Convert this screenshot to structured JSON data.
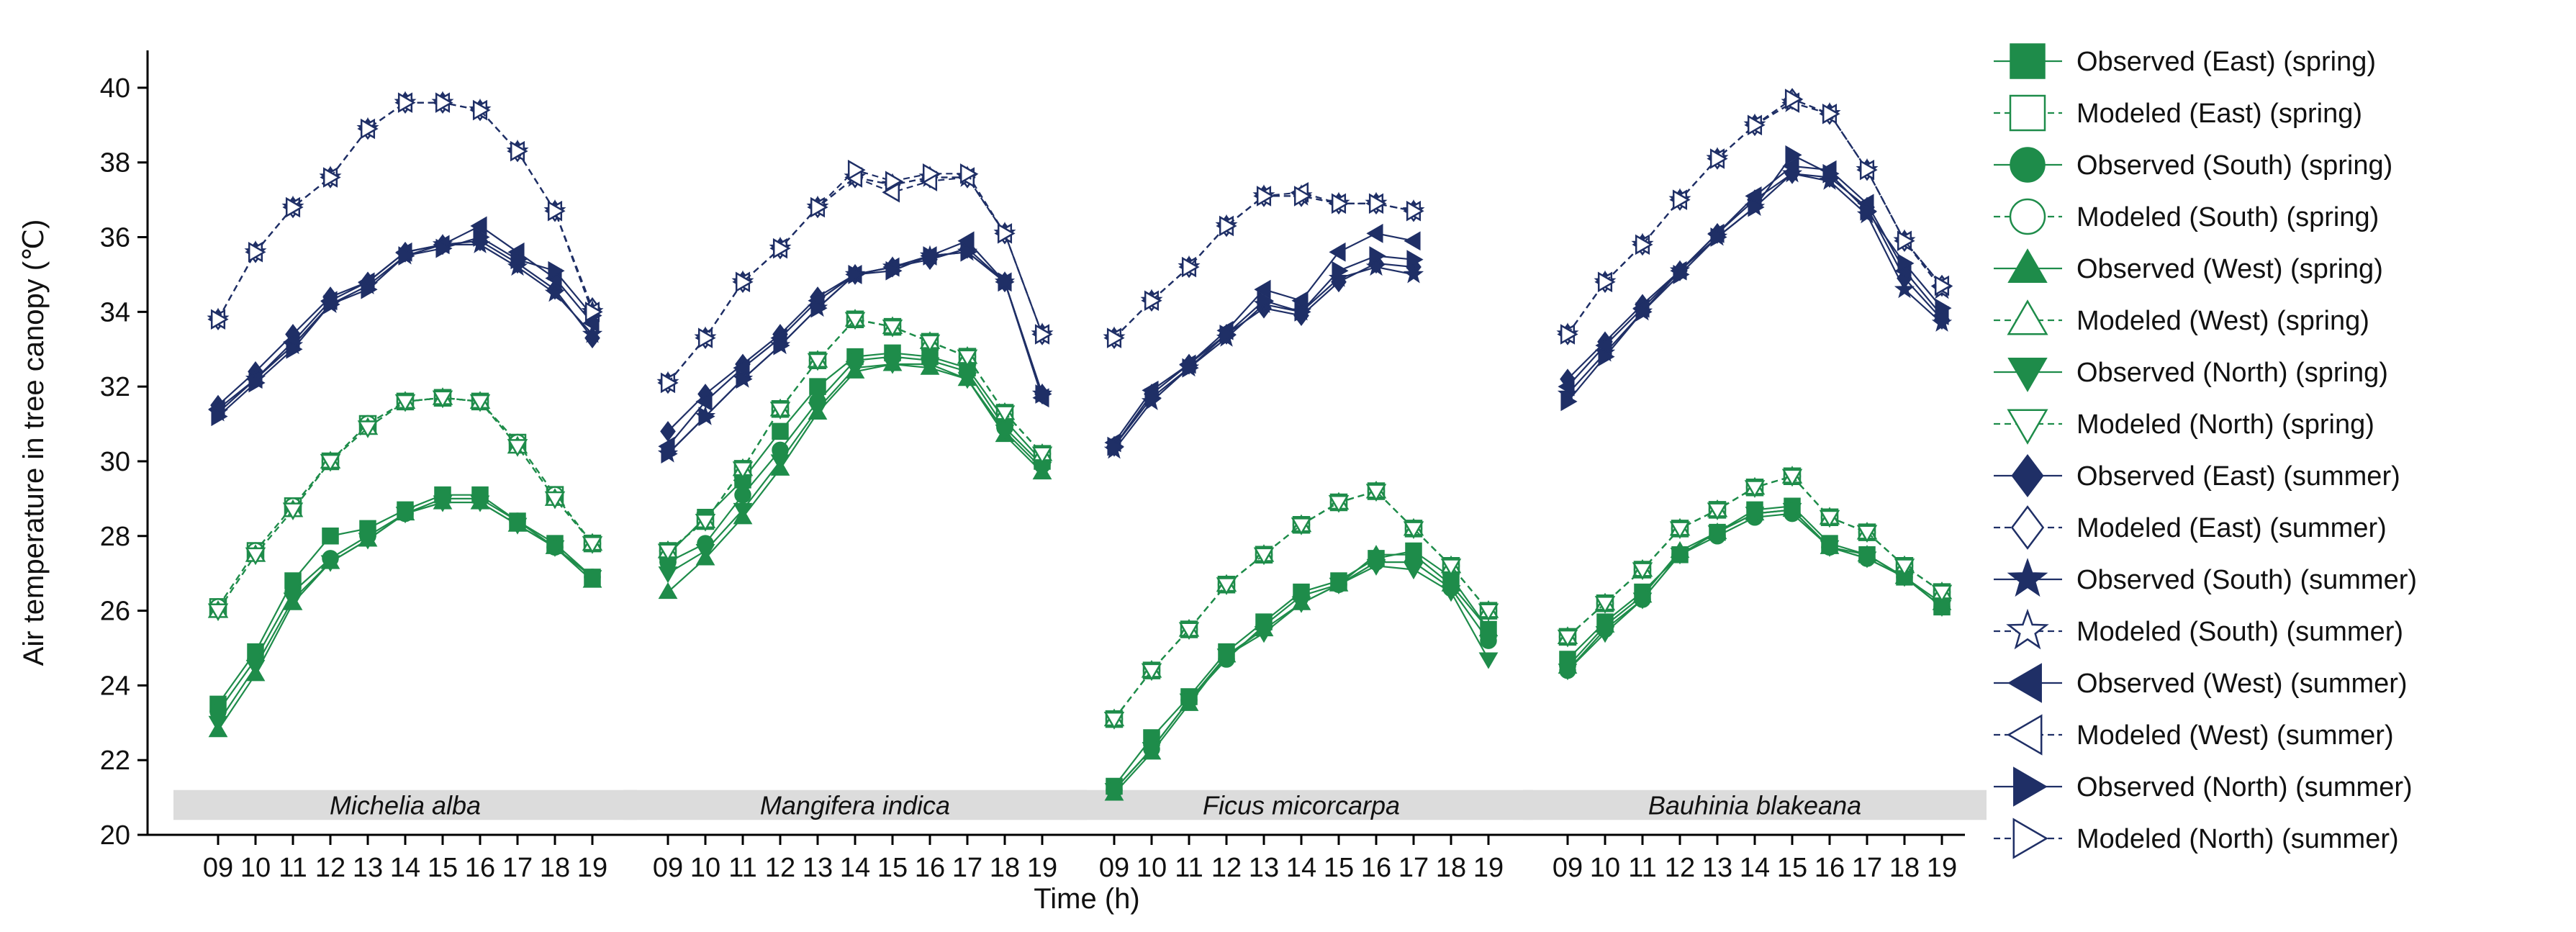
{
  "chart_data": {
    "type": "line",
    "ylabel": "Air temperature in tree canopy (℃)",
    "xlabel": "Time (h)",
    "ylim": [
      20,
      41
    ],
    "yticks": [
      20,
      22,
      24,
      26,
      28,
      30,
      32,
      34,
      36,
      38,
      40
    ],
    "hours": [
      "09",
      "10",
      "11",
      "12",
      "13",
      "14",
      "15",
      "16",
      "17",
      "18",
      "19"
    ],
    "colors": {
      "spring": "#1e8c4a",
      "summer": "#1f2f66"
    },
    "grid": false,
    "legend_position": "right",
    "series_defs": [
      {
        "label": "Observed (East) (spring)",
        "season": "spring",
        "kind": "observed",
        "marker": "square"
      },
      {
        "label": "Modeled (East) (spring)",
        "season": "spring",
        "kind": "modeled",
        "marker": "square"
      },
      {
        "label": "Observed (South) (spring)",
        "season": "spring",
        "kind": "observed",
        "marker": "circle"
      },
      {
        "label": "Modeled (South) (spring)",
        "season": "spring",
        "kind": "modeled",
        "marker": "circle"
      },
      {
        "label": "Observed (West) (spring)",
        "season": "spring",
        "kind": "observed",
        "marker": "triangle-up"
      },
      {
        "label": "Modeled (West) (spring)",
        "season": "spring",
        "kind": "modeled",
        "marker": "triangle-up"
      },
      {
        "label": "Observed (North) (spring)",
        "season": "spring",
        "kind": "observed",
        "marker": "triangle-down"
      },
      {
        "label": "Modeled (North) (spring)",
        "season": "spring",
        "kind": "modeled",
        "marker": "triangle-down"
      },
      {
        "label": "Observed (East) (summer)",
        "season": "summer",
        "kind": "observed",
        "marker": "diamond"
      },
      {
        "label": "Modeled (East) (summer)",
        "season": "summer",
        "kind": "modeled",
        "marker": "diamond"
      },
      {
        "label": "Observed (South) (summer)",
        "season": "summer",
        "kind": "observed",
        "marker": "star"
      },
      {
        "label": "Modeled (South) (summer)",
        "season": "summer",
        "kind": "modeled",
        "marker": "star"
      },
      {
        "label": "Observed (West) (summer)",
        "season": "summer",
        "kind": "observed",
        "marker": "triangle-left"
      },
      {
        "label": "Modeled (West) (summer)",
        "season": "summer",
        "kind": "modeled",
        "marker": "triangle-left"
      },
      {
        "label": "Observed (North) (summer)",
        "season": "summer",
        "kind": "observed",
        "marker": "triangle-right"
      },
      {
        "label": "Modeled (North) (summer)",
        "season": "summer",
        "kind": "modeled",
        "marker": "triangle-right"
      }
    ],
    "panels": [
      {
        "species": "Michelia alba",
        "values": [
          [
            23.5,
            24.9,
            26.8,
            28.0,
            28.2,
            28.7,
            29.1,
            29.1,
            28.4,
            27.8,
            26.9
          ],
          [
            26.1,
            27.6,
            28.8,
            30.0,
            31.0,
            31.6,
            31.7,
            31.6,
            30.5,
            29.1,
            27.8
          ],
          [
            23.3,
            24.7,
            26.5,
            27.4,
            28.0,
            28.6,
            29.0,
            29.0,
            28.4,
            27.7,
            26.9
          ],
          [
            26.1,
            27.6,
            28.8,
            30.0,
            31.0,
            31.6,
            31.7,
            31.6,
            30.5,
            29.1,
            27.8
          ],
          [
            22.8,
            24.3,
            26.2,
            27.3,
            27.9,
            28.6,
            28.9,
            28.9,
            28.3,
            27.7,
            26.8
          ],
          [
            26.0,
            27.5,
            28.7,
            30.0,
            30.9,
            31.6,
            31.7,
            31.6,
            30.4,
            29.0,
            27.8
          ],
          [
            23.0,
            24.5,
            26.3,
            27.3,
            27.9,
            28.6,
            28.9,
            28.9,
            28.3,
            27.7,
            26.9
          ],
          [
            26.0,
            27.5,
            28.7,
            30.0,
            30.9,
            31.6,
            31.7,
            31.6,
            30.4,
            29.0,
            27.8
          ],
          [
            31.5,
            32.4,
            33.4,
            34.4,
            34.8,
            35.6,
            35.8,
            35.9,
            35.3,
            34.6,
            33.3
          ],
          [
            33.8,
            35.6,
            36.8,
            37.6,
            38.9,
            39.6,
            39.6,
            39.4,
            38.3,
            36.7,
            34.1
          ],
          [
            31.3,
            32.2,
            33.1,
            34.2,
            34.7,
            35.5,
            35.8,
            35.8,
            35.2,
            34.5,
            33.4
          ],
          [
            33.8,
            35.6,
            36.8,
            37.6,
            38.9,
            39.6,
            39.6,
            39.4,
            38.3,
            36.7,
            34.0
          ],
          [
            31.4,
            32.2,
            33.2,
            34.3,
            34.8,
            35.6,
            35.8,
            36.3,
            35.6,
            34.9,
            33.7
          ],
          [
            33.8,
            35.6,
            36.8,
            37.6,
            38.9,
            39.6,
            39.6,
            39.4,
            38.3,
            36.7,
            34.0
          ],
          [
            31.2,
            32.1,
            33.0,
            34.2,
            34.6,
            35.5,
            35.7,
            36.0,
            35.4,
            35.1,
            33.9
          ],
          [
            33.8,
            35.6,
            36.8,
            37.6,
            38.9,
            39.6,
            39.6,
            39.4,
            38.3,
            36.7,
            34.0
          ]
        ]
      },
      {
        "species": "Mangifera indica",
        "values": [
          [
            27.5,
            28.5,
            29.5,
            30.8,
            32.0,
            32.8,
            32.9,
            32.8,
            32.5,
            31.1,
            30.0
          ],
          [
            27.6,
            28.4,
            29.8,
            31.4,
            32.7,
            33.8,
            33.6,
            33.2,
            32.8,
            31.3,
            30.2
          ],
          [
            27.3,
            27.8,
            29.1,
            30.3,
            31.6,
            32.7,
            32.8,
            32.7,
            32.4,
            30.9,
            29.9
          ],
          [
            27.6,
            28.4,
            29.8,
            31.4,
            32.7,
            33.8,
            33.6,
            33.2,
            32.8,
            31.3,
            30.2
          ],
          [
            26.5,
            27.4,
            28.5,
            29.8,
            31.3,
            32.4,
            32.6,
            32.5,
            32.2,
            30.7,
            29.7
          ],
          [
            27.6,
            28.4,
            29.8,
            31.4,
            32.7,
            33.8,
            33.6,
            33.2,
            32.8,
            31.3,
            30.2
          ],
          [
            27.0,
            27.6,
            28.7,
            30.0,
            31.4,
            32.5,
            32.6,
            32.6,
            32.2,
            30.8,
            29.8
          ],
          [
            27.6,
            28.4,
            29.8,
            31.4,
            32.7,
            33.8,
            33.6,
            33.2,
            32.8,
            31.3,
            30.2
          ],
          [
            30.8,
            31.8,
            32.6,
            33.4,
            34.4,
            35.0,
            35.2,
            35.4,
            35.7,
            34.8,
            31.8
          ],
          [
            32.1,
            33.3,
            34.8,
            35.7,
            36.8,
            37.6,
            37.4,
            37.6,
            37.6,
            36.1,
            33.4
          ],
          [
            30.2,
            31.2,
            32.2,
            33.1,
            34.1,
            35.0,
            35.2,
            35.5,
            35.6,
            34.8,
            31.8
          ],
          [
            32.1,
            33.3,
            34.8,
            35.7,
            36.8,
            37.6,
            37.4,
            37.6,
            37.6,
            36.1,
            33.4
          ],
          [
            30.4,
            31.6,
            32.5,
            33.3,
            34.3,
            35.0,
            35.2,
            35.5,
            35.9,
            34.8,
            31.7
          ],
          [
            32.1,
            33.3,
            34.8,
            35.7,
            36.8,
            37.6,
            37.2,
            37.5,
            37.6,
            36.1,
            33.4
          ],
          [
            30.2,
            31.2,
            32.2,
            33.1,
            34.1,
            35.0,
            35.1,
            35.5,
            35.6,
            34.8,
            31.8
          ],
          [
            32.1,
            33.3,
            34.8,
            35.7,
            36.8,
            37.8,
            37.5,
            37.7,
            37.7,
            36.1,
            33.4
          ]
        ]
      },
      {
        "species": "Ficus micorcarpa",
        "values": [
          [
            21.3,
            22.6,
            23.7,
            24.9,
            25.7,
            26.5,
            26.8,
            27.4,
            27.6,
            26.9,
            25.5
          ],
          [
            23.1,
            24.4,
            25.5,
            26.7,
            27.5,
            28.3,
            28.9,
            29.2,
            28.2,
            27.2,
            26.0
          ],
          [
            21.2,
            22.3,
            23.6,
            24.7,
            25.6,
            26.4,
            26.7,
            27.3,
            27.3,
            26.6,
            25.2
          ],
          [
            23.1,
            24.4,
            25.5,
            26.7,
            27.5,
            28.3,
            28.9,
            29.2,
            28.2,
            27.2,
            26.0
          ],
          [
            21.1,
            22.2,
            23.5,
            24.8,
            25.5,
            26.2,
            26.7,
            27.5,
            27.5,
            26.7,
            25.5
          ],
          [
            23.1,
            24.4,
            25.5,
            26.7,
            27.5,
            28.3,
            28.9,
            29.2,
            28.2,
            27.2,
            26.0
          ],
          [
            21.2,
            22.3,
            23.6,
            24.8,
            25.4,
            26.2,
            26.7,
            27.2,
            27.1,
            26.5,
            24.7
          ],
          [
            23.1,
            24.4,
            25.5,
            26.7,
            27.5,
            28.3,
            28.9,
            29.2,
            28.2,
            27.2,
            26.0
          ],
          [
            30.4,
            31.8,
            32.6,
            33.4,
            34.1,
            33.9,
            34.8,
            35.3,
            35.2,
            null,
            null
          ],
          [
            33.3,
            34.3,
            35.2,
            36.3,
            37.1,
            37.1,
            36.9,
            36.9,
            36.7,
            null,
            null
          ],
          [
            30.3,
            31.6,
            32.5,
            33.3,
            34.2,
            34.0,
            34.9,
            35.2,
            35.0,
            null,
            null
          ],
          [
            33.3,
            34.3,
            35.2,
            36.3,
            37.1,
            37.1,
            36.9,
            36.9,
            36.7,
            null,
            null
          ],
          [
            30.5,
            31.9,
            32.6,
            33.5,
            34.6,
            34.3,
            35.6,
            36.1,
            35.9,
            null,
            null
          ],
          [
            33.3,
            34.3,
            35.2,
            36.3,
            37.1,
            37.2,
            36.9,
            36.9,
            36.7,
            null,
            null
          ],
          [
            30.4,
            31.7,
            32.5,
            33.4,
            34.3,
            34.0,
            35.1,
            35.5,
            35.4,
            null,
            null
          ],
          [
            33.3,
            34.3,
            35.2,
            36.3,
            37.1,
            37.1,
            36.9,
            36.9,
            36.7,
            null,
            null
          ]
        ]
      },
      {
        "species": "Bauhinia blakeana",
        "values": [
          [
            24.7,
            25.7,
            26.5,
            27.5,
            28.1,
            28.7,
            28.8,
            27.8,
            27.5,
            26.9,
            26.1
          ],
          [
            25.3,
            26.2,
            27.1,
            28.2,
            28.7,
            29.3,
            29.6,
            28.5,
            28.1,
            27.2,
            26.5
          ],
          [
            24.4,
            25.5,
            26.3,
            27.5,
            28.0,
            28.5,
            28.6,
            27.7,
            27.4,
            26.9,
            26.1
          ],
          [
            25.3,
            26.2,
            27.1,
            28.2,
            28.7,
            29.3,
            29.6,
            28.5,
            28.1,
            27.2,
            26.5
          ],
          [
            24.5,
            25.6,
            26.4,
            27.6,
            28.1,
            28.6,
            28.7,
            27.7,
            27.5,
            26.9,
            26.2
          ],
          [
            25.3,
            26.2,
            27.1,
            28.2,
            28.7,
            29.3,
            29.6,
            28.5,
            28.1,
            27.2,
            26.5
          ],
          [
            24.4,
            25.4,
            26.3,
            27.5,
            28.1,
            28.6,
            28.7,
            27.7,
            27.4,
            26.9,
            26.1
          ],
          [
            25.3,
            26.2,
            27.1,
            28.2,
            28.7,
            29.3,
            29.6,
            28.5,
            28.1,
            27.2,
            26.5
          ],
          [
            32.2,
            33.2,
            34.2,
            35.1,
            36.1,
            37.0,
            37.7,
            37.6,
            36.8,
            34.9,
            33.8
          ],
          [
            33.4,
            34.8,
            35.8,
            37.0,
            38.1,
            39.0,
            39.7,
            39.3,
            37.8,
            35.9,
            34.7
          ],
          [
            31.8,
            32.9,
            34.0,
            35.1,
            36.0,
            36.8,
            37.7,
            37.5,
            36.6,
            34.6,
            33.7
          ],
          [
            33.4,
            34.8,
            35.8,
            37.0,
            38.1,
            39.0,
            39.6,
            39.3,
            37.8,
            35.9,
            34.6
          ],
          [
            32.0,
            33.1,
            34.1,
            35.1,
            36.1,
            37.1,
            37.9,
            37.8,
            36.9,
            35.1,
            33.9
          ],
          [
            33.4,
            34.8,
            35.8,
            37.0,
            38.1,
            39.0,
            39.6,
            39.3,
            37.8,
            35.9,
            34.7
          ],
          [
            31.6,
            32.8,
            34.0,
            35.0,
            36.0,
            36.8,
            38.2,
            37.7,
            36.7,
            35.3,
            34.1
          ],
          [
            33.4,
            34.8,
            35.8,
            37.0,
            38.1,
            39.0,
            39.7,
            39.3,
            37.8,
            35.9,
            34.7
          ]
        ]
      }
    ]
  }
}
